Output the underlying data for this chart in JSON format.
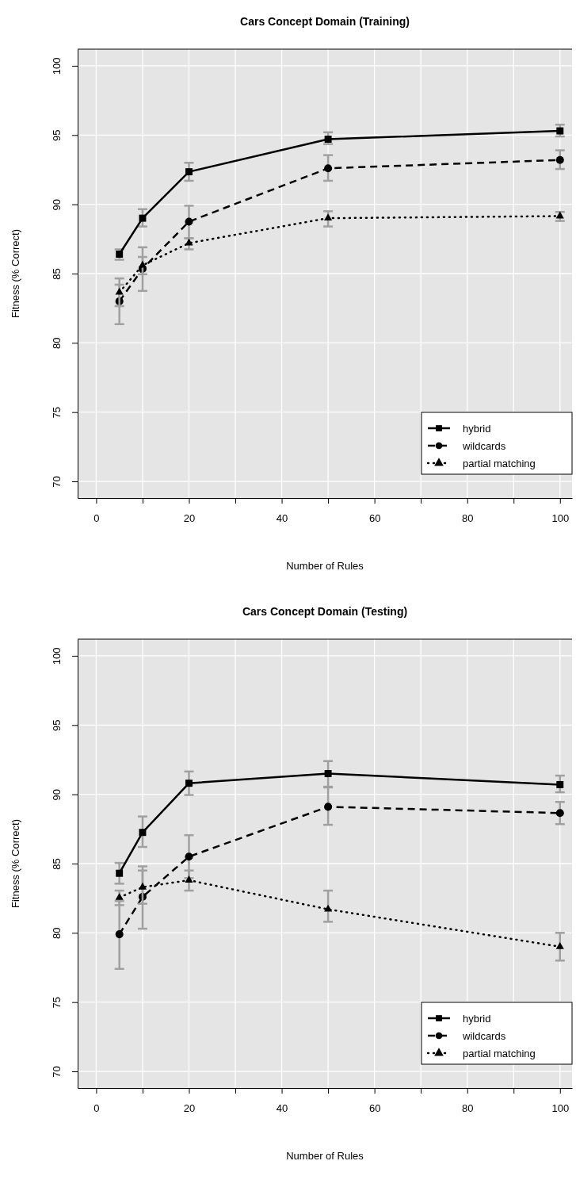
{
  "chart_data": [
    {
      "type": "line",
      "title": "Cars Concept Domain (Training)",
      "xlabel": "Number of Rules",
      "ylabel": "Fitness (% Correct)",
      "x": [
        5,
        10,
        20,
        50,
        100
      ],
      "xlim": [
        -4,
        102.6
      ],
      "ylim": [
        68.8,
        101.2
      ],
      "xticks": [
        0,
        {
          "value": 10,
          "label": null
        },
        20,
        {
          "value": 30,
          "label": null
        },
        40,
        {
          "value": 50,
          "label": null
        },
        60,
        {
          "value": 70,
          "label": null
        },
        80,
        {
          "value": 90,
          "label": null
        },
        100
      ],
      "yticks": [
        70,
        75,
        80,
        85,
        90,
        95,
        100
      ],
      "grid": true,
      "legend": "bottom right",
      "series": [
        {
          "name": "hybrid",
          "color": "#000000",
          "marker": "square",
          "line_style": "solid",
          "values": [
            86.4,
            89.0,
            92.35,
            94.7,
            95.3
          ],
          "errors": [
            [
              86.0,
              86.75
            ],
            [
              88.4,
              89.65
            ],
            [
              91.7,
              93.0
            ],
            [
              94.35,
              95.2
            ],
            [
              94.9,
              95.75
            ]
          ]
        },
        {
          "name": "wildcards",
          "color": "#000000",
          "marker": "circle",
          "line_style": "dashed",
          "values": [
            83.0,
            85.35,
            88.75,
            92.6,
            93.2
          ],
          "errors": [
            [
              81.35,
              84.2
            ],
            [
              83.75,
              86.9
            ],
            [
              87.55,
              89.9
            ],
            [
              91.7,
              93.55
            ],
            [
              92.55,
              93.9
            ]
          ]
        },
        {
          "name": "partial matching",
          "color": "#000000",
          "marker": "triangle",
          "line_style": "dotted",
          "values": [
            83.65,
            85.6,
            87.2,
            89.0,
            89.15
          ],
          "errors": [
            [
              82.65,
              84.65
            ],
            [
              84.95,
              86.2
            ],
            [
              86.75,
              87.55
            ],
            [
              88.4,
              89.5
            ],
            [
              88.8,
              89.45
            ]
          ]
        }
      ]
    },
    {
      "type": "line",
      "title": "Cars Concept Domain (Testing)",
      "xlabel": "Number of Rules",
      "ylabel": "Fitness (% Correct)",
      "x": [
        5,
        10,
        20,
        50,
        100
      ],
      "xlim": [
        -4,
        102.6
      ],
      "ylim": [
        68.8,
        101.2
      ],
      "xticks": [
        0,
        {
          "value": 10,
          "label": null
        },
        20,
        {
          "value": 30,
          "label": null
        },
        40,
        {
          "value": 50,
          "label": null
        },
        60,
        {
          "value": 70,
          "label": null
        },
        80,
        {
          "value": 90,
          "label": null
        },
        100
      ],
      "yticks": [
        70,
        75,
        80,
        85,
        90,
        95,
        100
      ],
      "grid": true,
      "legend": "bottom right",
      "series": [
        {
          "name": "hybrid",
          "color": "#000000",
          "marker": "square",
          "line_style": "solid",
          "values": [
            84.3,
            87.25,
            90.8,
            91.5,
            90.7
          ],
          "errors": [
            [
              83.55,
              85.05
            ],
            [
              86.2,
              88.4
            ],
            [
              89.95,
              91.65
            ],
            [
              90.55,
              92.4
            ],
            [
              90.15,
              91.35
            ]
          ]
        },
        {
          "name": "wildcards",
          "color": "#000000",
          "marker": "circle",
          "line_style": "dashed",
          "values": [
            79.9,
            82.6,
            85.5,
            89.1,
            88.65
          ],
          "errors": [
            [
              77.4,
              82.3
            ],
            [
              80.3,
              84.8
            ],
            [
              83.95,
              87.05
            ],
            [
              87.8,
              90.5
            ],
            [
              87.85,
              89.45
            ]
          ]
        },
        {
          "name": "partial matching",
          "color": "#000000",
          "marker": "triangle",
          "line_style": "dotted",
          "values": [
            82.55,
            83.3,
            83.8,
            81.7,
            79.0
          ],
          "errors": [
            [
              82.0,
              83.05
            ],
            [
              82.1,
              84.5
            ],
            [
              83.05,
              84.5
            ],
            [
              80.8,
              83.05
            ],
            [
              78.0,
              80.0
            ]
          ]
        }
      ]
    }
  ]
}
